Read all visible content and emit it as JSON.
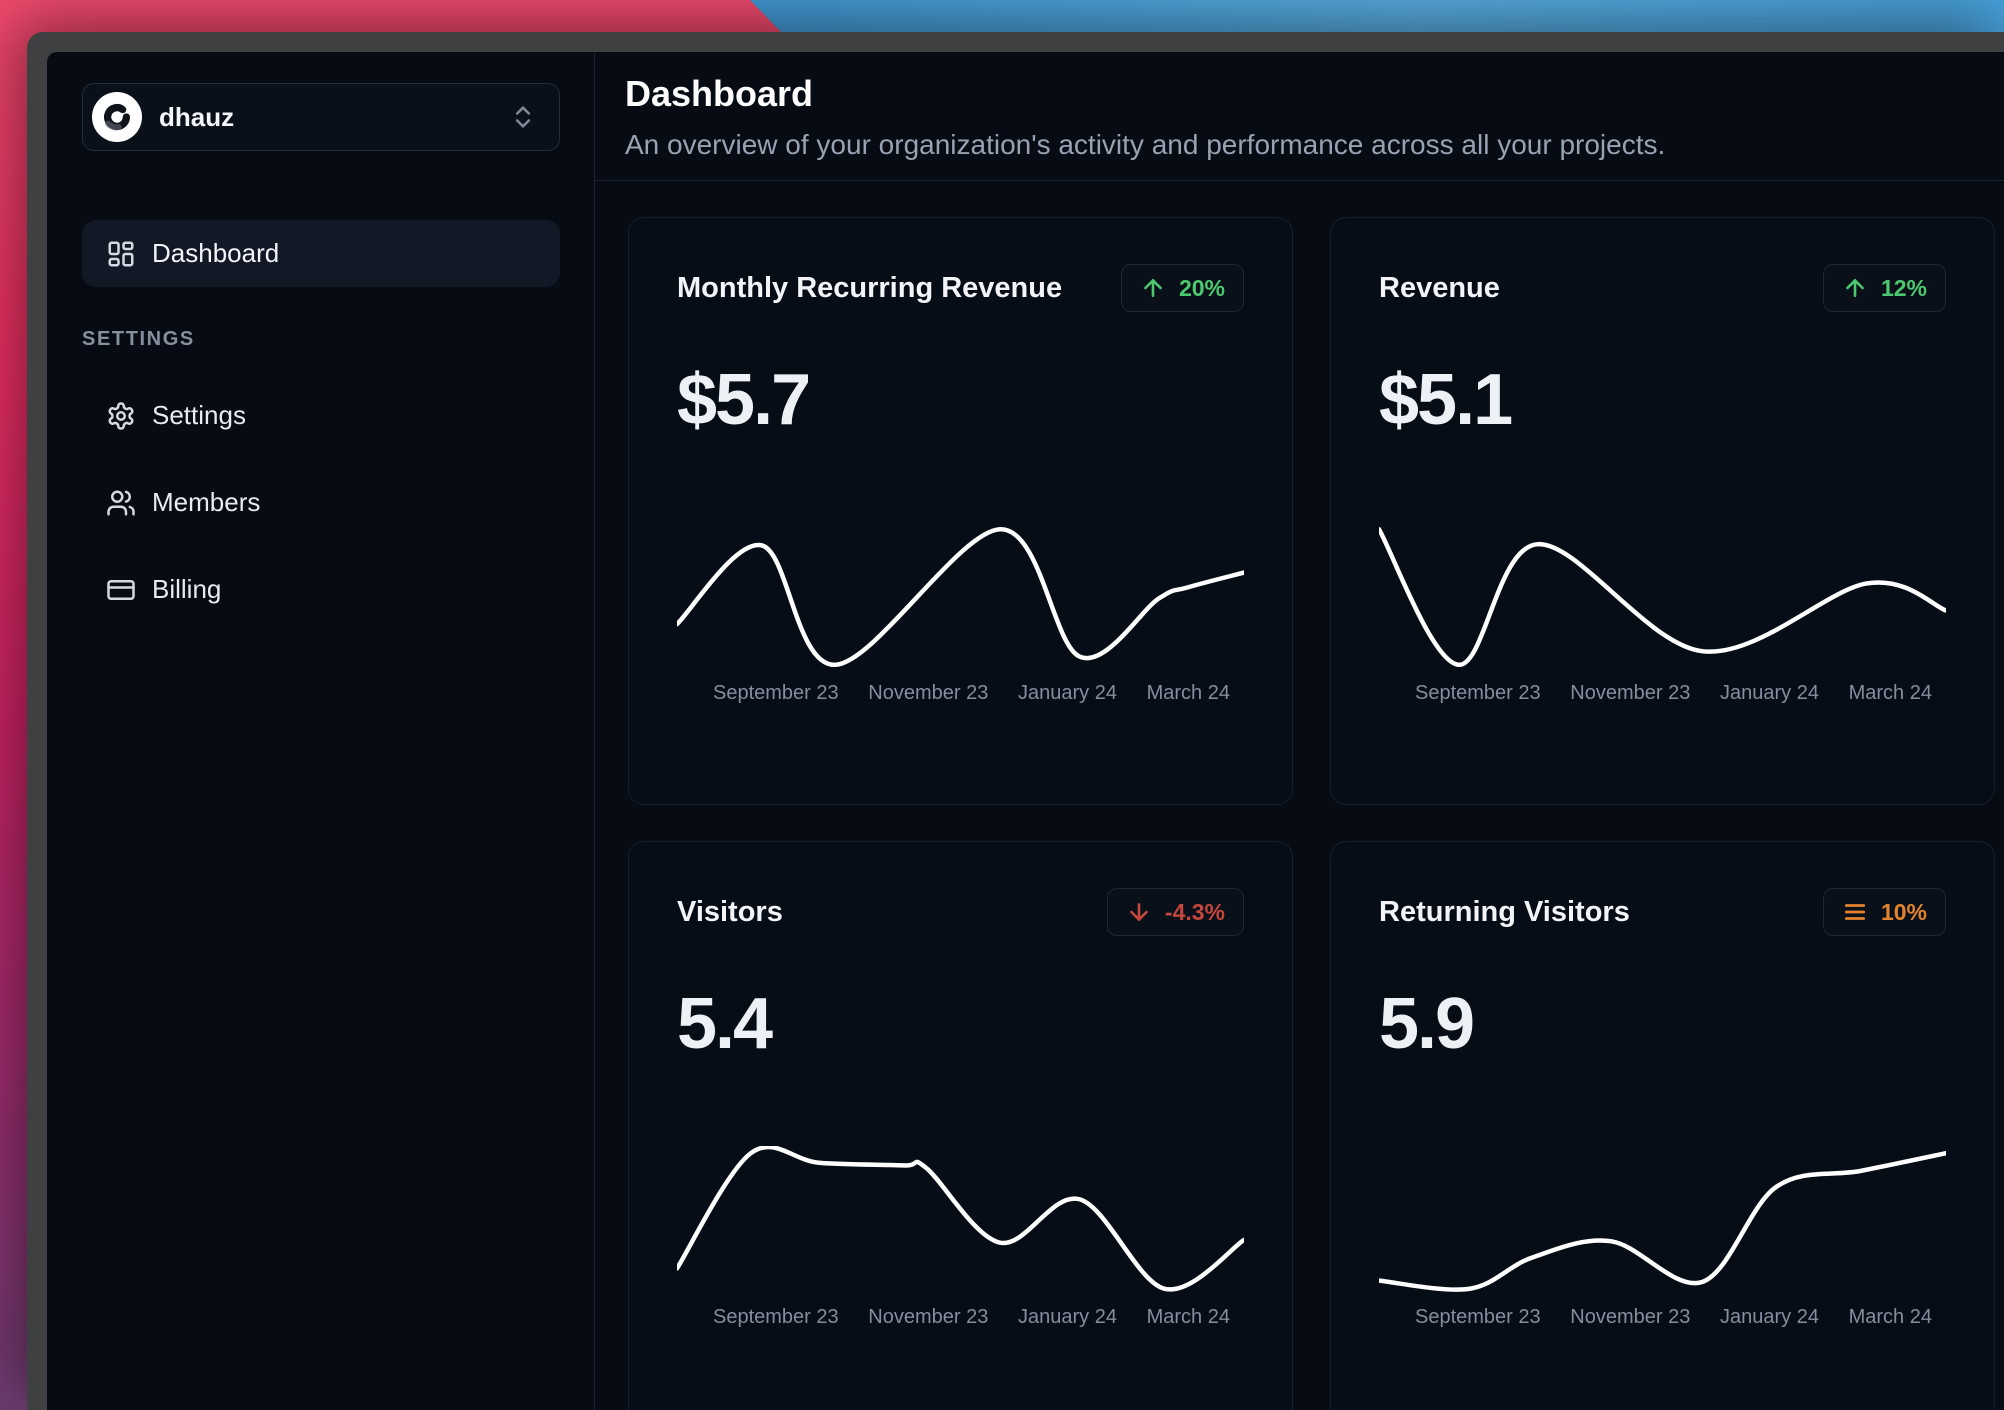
{
  "workspace": {
    "name": "dhauz"
  },
  "sidebar": {
    "items": [
      {
        "label": "Dashboard",
        "active": true
      }
    ],
    "section": "SETTINGS",
    "section_items": [
      {
        "label": "Settings"
      },
      {
        "label": "Members"
      },
      {
        "label": "Billing"
      }
    ]
  },
  "header": {
    "title": "Dashboard",
    "subtitle": "An overview of your organization's activity and performance across all your projects."
  },
  "chart_data": [
    {
      "type": "line",
      "title": "Monthly Recurring Revenue",
      "value": "$5.7",
      "badge": {
        "text": "20%",
        "direction": "up",
        "color": "#4cc96f"
      },
      "x_labels": [
        "September 23",
        "November 23",
        "January 24",
        "March 24"
      ],
      "line_color": "#ffffff",
      "ylim": [
        0,
        100
      ],
      "points": [
        [
          0,
          30
        ],
        [
          0.15,
          88
        ],
        [
          0.28,
          0
        ],
        [
          0.57,
          100
        ],
        [
          0.71,
          6
        ],
        [
          0.85,
          49
        ],
        [
          0.9,
          57
        ],
        [
          1,
          68
        ]
      ]
    },
    {
      "type": "line",
      "title": "Revenue",
      "value": "$5.1",
      "badge": {
        "text": "12%",
        "direction": "up",
        "color": "#4cc96f"
      },
      "x_labels": [
        "September 23",
        "November 23",
        "January 24",
        "March 24"
      ],
      "line_color": "#ffffff",
      "ylim": [
        0,
        100
      ],
      "points": [
        [
          0,
          100
        ],
        [
          0.14,
          0
        ],
        [
          0.28,
          89
        ],
        [
          0.57,
          10
        ],
        [
          0.86,
          60
        ],
        [
          1,
          40
        ]
      ]
    },
    {
      "type": "line",
      "title": "Visitors",
      "value": "5.4",
      "badge": {
        "text": "-4.3%",
        "direction": "down",
        "color": "#c4473e"
      },
      "x_labels": [
        "September 23",
        "November 23",
        "January 24",
        "March 24"
      ],
      "line_color": "#ffffff",
      "ylim": [
        0,
        100
      ],
      "points": [
        [
          0,
          15
        ],
        [
          0.13,
          100
        ],
        [
          0.25,
          93
        ],
        [
          0.4,
          91
        ],
        [
          0.44,
          89
        ],
        [
          0.57,
          34
        ],
        [
          0.71,
          66
        ],
        [
          0.86,
          0
        ],
        [
          1,
          36
        ]
      ]
    },
    {
      "type": "line",
      "title": "Returning Visitors",
      "value": "5.9",
      "badge": {
        "text": "10%",
        "direction": "flat",
        "color": "#e2832d"
      },
      "x_labels": [
        "September 23",
        "November 23",
        "January 24",
        "March 24"
      ],
      "line_color": "#ffffff",
      "ylim": [
        0,
        100
      ],
      "points": [
        [
          0,
          6
        ],
        [
          0.16,
          0
        ],
        [
          0.27,
          23
        ],
        [
          0.41,
          35
        ],
        [
          0.57,
          5
        ],
        [
          0.7,
          75
        ],
        [
          0.85,
          87
        ],
        [
          1,
          100
        ]
      ]
    }
  ]
}
